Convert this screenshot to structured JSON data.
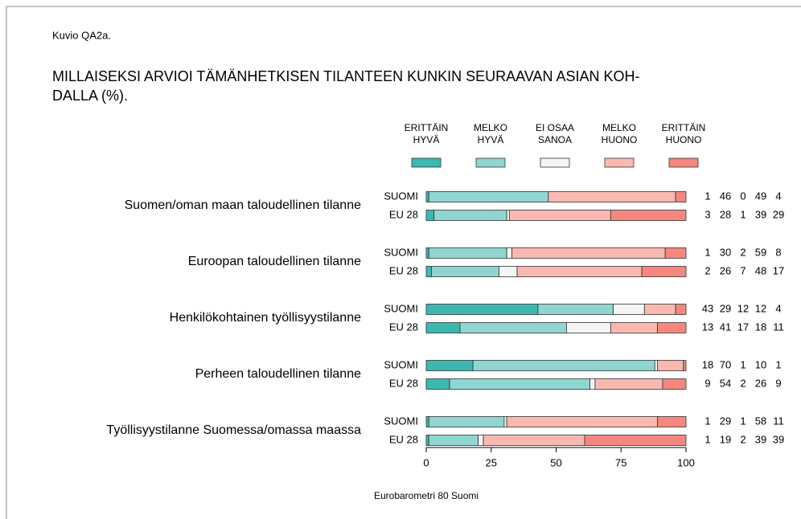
{
  "chart_data": {
    "type": "bar",
    "orientation": "horizontal",
    "stacked": true,
    "figure_label": "Kuvio QA2a.",
    "title": [
      "MILLAISEKSI ARVIOI TÄMÄNHETKISEN TILANTEEN KUNKIN SEURAAVAN ASIAN KOH-",
      "DALLA (%)."
    ],
    "source": "Eurobarometri 80 Suomi",
    "groups": [
      "Suomen/oman maan taloudellinen tilanne",
      "Euroopan taloudellinen tilanne",
      "Henkilökohtainen työllisyystilanne",
      "Perheen taloudellinen tilanne",
      "Työllisyystilanne Suomessa/omassa maassa"
    ],
    "categories": [
      "SUOMI",
      "EU 28",
      "SUOMI",
      "EU 28",
      "SUOMI",
      "EU 28",
      "SUOMI",
      "EU 28",
      "SUOMI",
      "EU 28"
    ],
    "series": [
      {
        "name": [
          "ERITTÄIN",
          "HYVÄ"
        ],
        "color": "#3cb8b0",
        "values": [
          1,
          3,
          1,
          2,
          43,
          13,
          18,
          9,
          1,
          1
        ]
      },
      {
        "name": [
          "MELKO",
          "HYVÄ"
        ],
        "color": "#8fd6d1",
        "values": [
          46,
          28,
          30,
          26,
          29,
          41,
          70,
          54,
          29,
          19
        ]
      },
      {
        "name": [
          "EI OSAA",
          "SANOA"
        ],
        "color": "#f5f5f5",
        "values": [
          0,
          1,
          2,
          7,
          12,
          17,
          1,
          2,
          1,
          2
        ]
      },
      {
        "name": [
          "MELKO",
          "HUONO"
        ],
        "color": "#f9b9b1",
        "values": [
          49,
          39,
          59,
          48,
          12,
          18,
          10,
          26,
          58,
          39
        ]
      },
      {
        "name": [
          "ERITTÄIN",
          "HUONO"
        ],
        "color": "#f5877f",
        "values": [
          4,
          29,
          8,
          17,
          4,
          11,
          1,
          9,
          11,
          39
        ]
      }
    ],
    "xlim": [
      0,
      100
    ],
    "xticks": [
      0,
      25,
      50,
      75,
      100
    ]
  }
}
